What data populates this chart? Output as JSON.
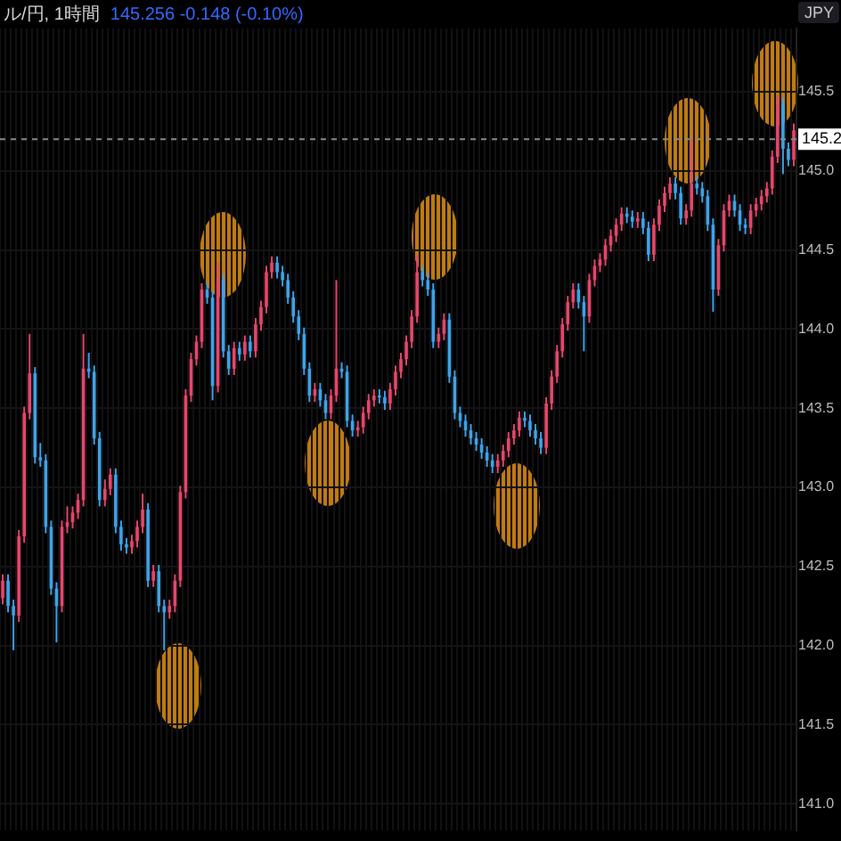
{
  "chart_data": {
    "type": "candlestick",
    "title": "ル/円, 1時間",
    "subtitle": "145.256 -0.148 (-0.10%)",
    "ylabel": "JPY",
    "categories": [
      null,
      null,
      null,
      null,
      null,
      null,
      null,
      null,
      null,
      null,
      null,
      null,
      null,
      null,
      null,
      null,
      null,
      null,
      null,
      null,
      null,
      null,
      null,
      null,
      null,
      null,
      null,
      null,
      null,
      null,
      null,
      null,
      null,
      null,
      null,
      null,
      null,
      null,
      null,
      null,
      null,
      null,
      null,
      null,
      null,
      null,
      null,
      null,
      null,
      null,
      null,
      null,
      null,
      null,
      null,
      null,
      null,
      null,
      null,
      null,
      null,
      null,
      null,
      null,
      null,
      null,
      null,
      null,
      null,
      null,
      null,
      null,
      null,
      null,
      null,
      null,
      null,
      null,
      null,
      null,
      null,
      null,
      null,
      null,
      null,
      null,
      null,
      null,
      null,
      null,
      null,
      null,
      null,
      null,
      null,
      null,
      null,
      null,
      null,
      null,
      null,
      null,
      null,
      null,
      null,
      null,
      null,
      null,
      null,
      null,
      null,
      null,
      null,
      null,
      null,
      null,
      null,
      null,
      null,
      null,
      null,
      null,
      null,
      null,
      null,
      null,
      null,
      null,
      null,
      null,
      null,
      null,
      null,
      null,
      null,
      null,
      null,
      null,
      null,
      null,
      null,
      null,
      null,
      null,
      null,
      null,
      null,
      null
    ],
    "ohlc": [
      [
        142.3,
        142.45,
        142.26,
        142.41
      ],
      [
        142.41,
        142.45,
        142.21,
        142.25
      ],
      [
        142.25,
        142.29,
        141.97,
        142.19
      ],
      [
        142.19,
        142.73,
        142.15,
        142.69
      ],
      [
        142.69,
        143.51,
        142.65,
        143.47
      ],
      [
        143.47,
        143.97,
        143.43,
        143.72
      ],
      [
        143.72,
        143.76,
        143.15,
        143.19
      ],
      [
        143.19,
        143.28,
        143.13,
        143.17
      ],
      [
        143.17,
        143.21,
        142.71,
        142.75
      ],
      [
        142.75,
        142.79,
        142.32,
        142.36
      ],
      [
        142.36,
        142.4,
        142.02,
        142.25
      ],
      [
        142.25,
        142.79,
        142.21,
        142.75
      ],
      [
        142.75,
        142.88,
        142.71,
        142.78
      ],
      [
        142.78,
        142.88,
        142.74,
        142.84
      ],
      [
        142.84,
        142.96,
        142.8,
        142.92
      ],
      [
        142.92,
        143.97,
        142.88,
        143.75
      ],
      [
        143.75,
        143.85,
        143.69,
        143.73
      ],
      [
        143.73,
        143.77,
        143.27,
        143.31
      ],
      [
        143.31,
        143.35,
        142.88,
        142.92
      ],
      [
        142.92,
        143.05,
        142.88,
        142.99
      ],
      [
        142.99,
        143.12,
        142.95,
        143.08
      ],
      [
        143.08,
        143.12,
        142.71,
        142.75
      ],
      [
        142.75,
        142.79,
        142.6,
        142.64
      ],
      [
        142.64,
        142.68,
        142.58,
        142.62
      ],
      [
        142.62,
        142.7,
        142.58,
        142.66
      ],
      [
        142.66,
        142.79,
        142.62,
        142.75
      ],
      [
        142.75,
        142.96,
        142.71,
        142.86
      ],
      [
        142.86,
        142.9,
        142.37,
        142.41
      ],
      [
        142.41,
        142.51,
        142.37,
        142.47
      ],
      [
        142.47,
        142.51,
        142.21,
        142.25
      ],
      [
        142.25,
        142.29,
        141.97,
        142.21
      ],
      [
        142.21,
        142.29,
        142.17,
        142.25
      ],
      [
        142.25,
        142.45,
        142.21,
        142.41
      ],
      [
        142.41,
        143.01,
        142.37,
        142.97
      ],
      [
        142.97,
        143.62,
        142.93,
        143.58
      ],
      [
        143.58,
        143.85,
        143.54,
        143.81
      ],
      [
        143.81,
        143.96,
        143.77,
        143.92
      ],
      [
        143.92,
        144.29,
        143.88,
        144.25
      ],
      [
        144.25,
        144.29,
        144.16,
        144.2
      ],
      [
        144.2,
        144.24,
        143.55,
        143.64
      ],
      [
        143.64,
        144.42,
        143.6,
        144.31
      ],
      [
        144.31,
        144.35,
        143.82,
        143.86
      ],
      [
        143.86,
        143.9,
        143.71,
        143.75
      ],
      [
        143.75,
        143.92,
        143.71,
        143.88
      ],
      [
        143.88,
        143.92,
        143.8,
        143.84
      ],
      [
        143.84,
        143.96,
        143.8,
        143.92
      ],
      [
        143.92,
        143.96,
        143.82,
        143.86
      ],
      [
        143.86,
        144.07,
        143.82,
        144.03
      ],
      [
        144.03,
        144.18,
        143.99,
        144.14
      ],
      [
        144.14,
        144.4,
        144.1,
        144.36
      ],
      [
        144.36,
        144.46,
        144.32,
        144.42
      ],
      [
        144.42,
        144.46,
        144.32,
        144.36
      ],
      [
        144.36,
        144.4,
        144.27,
        144.31
      ],
      [
        144.31,
        144.35,
        144.16,
        144.2
      ],
      [
        144.2,
        144.24,
        144.04,
        144.08
      ],
      [
        144.08,
        144.12,
        143.93,
        143.97
      ],
      [
        143.97,
        144.01,
        143.71,
        143.75
      ],
      [
        143.75,
        143.79,
        143.54,
        143.58
      ],
      [
        143.58,
        143.66,
        143.54,
        143.62
      ],
      [
        143.62,
        143.66,
        143.51,
        143.55
      ],
      [
        143.55,
        143.59,
        143.43,
        143.47
      ],
      [
        143.47,
        143.62,
        143.43,
        143.58
      ],
      [
        143.58,
        144.31,
        143.54,
        143.75
      ],
      [
        143.75,
        143.79,
        143.69,
        143.73
      ],
      [
        143.73,
        143.77,
        143.38,
        143.42
      ],
      [
        143.42,
        143.46,
        143.32,
        143.36
      ],
      [
        143.36,
        143.42,
        143.32,
        143.38
      ],
      [
        143.38,
        143.51,
        143.34,
        143.47
      ],
      [
        143.47,
        143.59,
        143.43,
        143.55
      ],
      [
        143.55,
        143.62,
        143.51,
        143.58
      ],
      [
        143.58,
        143.62,
        143.53,
        143.57
      ],
      [
        143.57,
        143.61,
        143.49,
        143.53
      ],
      [
        143.53,
        143.66,
        143.49,
        143.62
      ],
      [
        143.62,
        143.77,
        143.58,
        143.73
      ],
      [
        143.73,
        143.85,
        143.69,
        143.81
      ],
      [
        143.81,
        143.96,
        143.77,
        143.92
      ],
      [
        143.92,
        144.12,
        143.88,
        144.08
      ],
      [
        144.08,
        144.47,
        144.04,
        144.36
      ],
      [
        144.36,
        144.4,
        144.27,
        144.31
      ],
      [
        144.31,
        144.35,
        144.21,
        144.25
      ],
      [
        144.25,
        144.29,
        143.88,
        143.92
      ],
      [
        143.92,
        144.01,
        143.88,
        143.97
      ],
      [
        143.97,
        144.1,
        143.93,
        144.06
      ],
      [
        144.06,
        144.1,
        143.66,
        143.7
      ],
      [
        143.7,
        143.74,
        143.43,
        143.47
      ],
      [
        143.47,
        143.51,
        143.38,
        143.42
      ],
      [
        143.42,
        143.46,
        143.32,
        143.36
      ],
      [
        143.36,
        143.4,
        143.27,
        143.31
      ],
      [
        143.31,
        143.35,
        143.23,
        143.27
      ],
      [
        143.27,
        143.31,
        143.18,
        143.22
      ],
      [
        143.22,
        143.26,
        143.13,
        143.17
      ],
      [
        143.17,
        143.21,
        143.09,
        143.13
      ],
      [
        143.13,
        143.21,
        143.09,
        143.17
      ],
      [
        143.17,
        143.27,
        143.13,
        143.23
      ],
      [
        143.23,
        143.35,
        143.19,
        143.31
      ],
      [
        143.31,
        143.4,
        143.27,
        143.36
      ],
      [
        143.36,
        143.48,
        143.32,
        143.44
      ],
      [
        143.44,
        143.48,
        143.38,
        143.42
      ],
      [
        143.42,
        143.46,
        143.32,
        143.36
      ],
      [
        143.36,
        143.4,
        143.27,
        143.31
      ],
      [
        143.31,
        143.35,
        143.21,
        143.25
      ],
      [
        143.25,
        143.57,
        143.21,
        143.53
      ],
      [
        143.53,
        143.74,
        143.49,
        143.7
      ],
      [
        143.7,
        143.9,
        143.66,
        143.86
      ],
      [
        143.86,
        144.07,
        143.82,
        144.03
      ],
      [
        144.03,
        144.21,
        143.99,
        144.17
      ],
      [
        144.17,
        144.29,
        144.13,
        144.25
      ],
      [
        144.25,
        144.29,
        144.13,
        144.17
      ],
      [
        144.17,
        144.21,
        143.86,
        144.08
      ],
      [
        144.08,
        144.35,
        144.04,
        144.31
      ],
      [
        144.31,
        144.44,
        144.27,
        144.4
      ],
      [
        144.4,
        144.48,
        144.36,
        144.44
      ],
      [
        144.44,
        144.57,
        144.4,
        144.53
      ],
      [
        144.53,
        144.63,
        144.49,
        144.59
      ],
      [
        144.59,
        144.7,
        144.55,
        144.66
      ],
      [
        144.66,
        144.77,
        144.62,
        144.73
      ],
      [
        144.73,
        144.77,
        144.67,
        144.71
      ],
      [
        144.71,
        144.75,
        144.64,
        144.68
      ],
      [
        144.68,
        144.74,
        144.64,
        144.7
      ],
      [
        144.7,
        144.74,
        144.6,
        144.64
      ],
      [
        144.64,
        144.68,
        144.43,
        144.47
      ],
      [
        144.47,
        144.7,
        144.43,
        144.66
      ],
      [
        144.66,
        144.82,
        144.62,
        144.78
      ],
      [
        144.78,
        144.9,
        144.74,
        144.86
      ],
      [
        144.86,
        144.96,
        144.82,
        144.92
      ],
      [
        144.92,
        144.96,
        144.82,
        144.86
      ],
      [
        144.86,
        144.9,
        144.66,
        144.7
      ],
      [
        144.7,
        144.79,
        144.66,
        144.75
      ],
      [
        144.75,
        145.2,
        144.71,
        144.92
      ],
      [
        144.92,
        144.96,
        144.85,
        144.89
      ],
      [
        144.89,
        144.93,
        144.8,
        144.84
      ],
      [
        144.84,
        144.88,
        144.62,
        144.66
      ],
      [
        144.66,
        144.7,
        144.11,
        144.25
      ],
      [
        144.25,
        144.57,
        144.21,
        144.53
      ],
      [
        144.53,
        144.79,
        144.49,
        144.75
      ],
      [
        144.75,
        144.85,
        144.71,
        144.81
      ],
      [
        144.81,
        144.85,
        144.71,
        144.75
      ],
      [
        144.75,
        144.79,
        144.62,
        144.66
      ],
      [
        144.66,
        144.7,
        144.6,
        144.64
      ],
      [
        144.64,
        144.79,
        144.6,
        144.75
      ],
      [
        144.75,
        144.83,
        144.71,
        144.79
      ],
      [
        144.79,
        144.88,
        144.75,
        144.84
      ],
      [
        144.84,
        144.93,
        144.8,
        144.89
      ],
      [
        144.89,
        145.13,
        144.85,
        145.09
      ],
      [
        145.09,
        145.48,
        145.05,
        145.42
      ],
      [
        145.42,
        145.46,
        144.98,
        145.14
      ],
      [
        145.14,
        145.18,
        145.03,
        145.07
      ],
      [
        145.07,
        145.3,
        145.03,
        145.256
      ]
    ],
    "colors": [
      "#e8466a",
      "#3fa3ea",
      "#3fa3ea",
      "#e8466a",
      "#e8466a",
      "#e8466a",
      "#3fa3ea",
      "#3fa3ea",
      "#3fa3ea",
      "#3fa3ea",
      "#3fa3ea",
      "#e8466a",
      "#e8466a",
      "#e8466a",
      "#e8466a",
      "#e8466a",
      "#3fa3ea",
      "#3fa3ea",
      "#3fa3ea",
      "#e8466a",
      "#e8466a",
      "#3fa3ea",
      "#3fa3ea",
      "#3fa3ea",
      "#e8466a",
      "#e8466a",
      "#e8466a",
      "#3fa3ea",
      "#e8466a",
      "#3fa3ea",
      "#3fa3ea",
      "#e8466a",
      "#e8466a",
      "#e8466a",
      "#e8466a",
      "#e8466a",
      "#e8466a",
      "#e8466a",
      "#3fa3ea",
      "#3fa3ea",
      "#e8466a",
      "#3fa3ea",
      "#3fa3ea",
      "#e8466a",
      "#3fa3ea",
      "#e8466a",
      "#3fa3ea",
      "#e8466a",
      "#e8466a",
      "#e8466a",
      "#e8466a",
      "#3fa3ea",
      "#3fa3ea",
      "#3fa3ea",
      "#3fa3ea",
      "#3fa3ea",
      "#3fa3ea",
      "#3fa3ea",
      "#e8466a",
      "#3fa3ea",
      "#3fa3ea",
      "#e8466a",
      "#e8466a",
      "#3fa3ea",
      "#3fa3ea",
      "#3fa3ea",
      "#e8466a",
      "#e8466a",
      "#e8466a",
      "#e8466a",
      "#3fa3ea",
      "#3fa3ea",
      "#e8466a",
      "#e8466a",
      "#e8466a",
      "#e8466a",
      "#e8466a",
      "#e8466a",
      "#3fa3ea",
      "#3fa3ea",
      "#3fa3ea",
      "#e8466a",
      "#e8466a",
      "#3fa3ea",
      "#3fa3ea",
      "#3fa3ea",
      "#3fa3ea",
      "#3fa3ea",
      "#3fa3ea",
      "#3fa3ea",
      "#3fa3ea",
      "#3fa3ea",
      "#e8466a",
      "#e8466a",
      "#e8466a",
      "#e8466a",
      "#e8466a",
      "#3fa3ea",
      "#3fa3ea",
      "#3fa3ea",
      "#3fa3ea",
      "#e8466a",
      "#e8466a",
      "#e8466a",
      "#e8466a",
      "#e8466a",
      "#e8466a",
      "#3fa3ea",
      "#3fa3ea",
      "#e8466a",
      "#e8466a",
      "#e8466a",
      "#e8466a",
      "#e8466a",
      "#e8466a",
      "#e8466a",
      "#3fa3ea",
      "#3fa3ea",
      "#e8466a",
      "#3fa3ea",
      "#3fa3ea",
      "#e8466a",
      "#e8466a",
      "#e8466a",
      "#e8466a",
      "#3fa3ea",
      "#3fa3ea",
      "#e8466a",
      "#e8466a",
      "#3fa3ea",
      "#3fa3ea",
      "#3fa3ea",
      "#3fa3ea",
      "#e8466a",
      "#e8466a",
      "#e8466a",
      "#3fa3ea",
      "#3fa3ea",
      "#3fa3ea",
      "#e8466a",
      "#e8466a",
      "#e8466a",
      "#e8466a",
      "#e8466a",
      "#e8466a",
      "#3fa3ea",
      "#3fa3ea",
      "#e8466a"
    ],
    "ylim": [
      140.83,
      145.9
    ],
    "yticks": [
      {
        "value": 141,
        "label": "141.0"
      },
      141.5,
      {
        "value": 142,
        "label": "142.0"
      },
      142.5,
      {
        "value": 143,
        "label": "143.0"
      },
      143.5,
      {
        "value": 144,
        "label": "144.0"
      },
      144.5,
      {
        "value": 145,
        "label": "145.0"
      },
      145.5
    ],
    "grid": true,
    "tick_labels": "y",
    "ref_lines": [
      {
        "axis": "y",
        "value": 145.2,
        "label": "145.2",
        "color": "#8a8a8a",
        "line_style": "dashed"
      }
    ]
  }
}
